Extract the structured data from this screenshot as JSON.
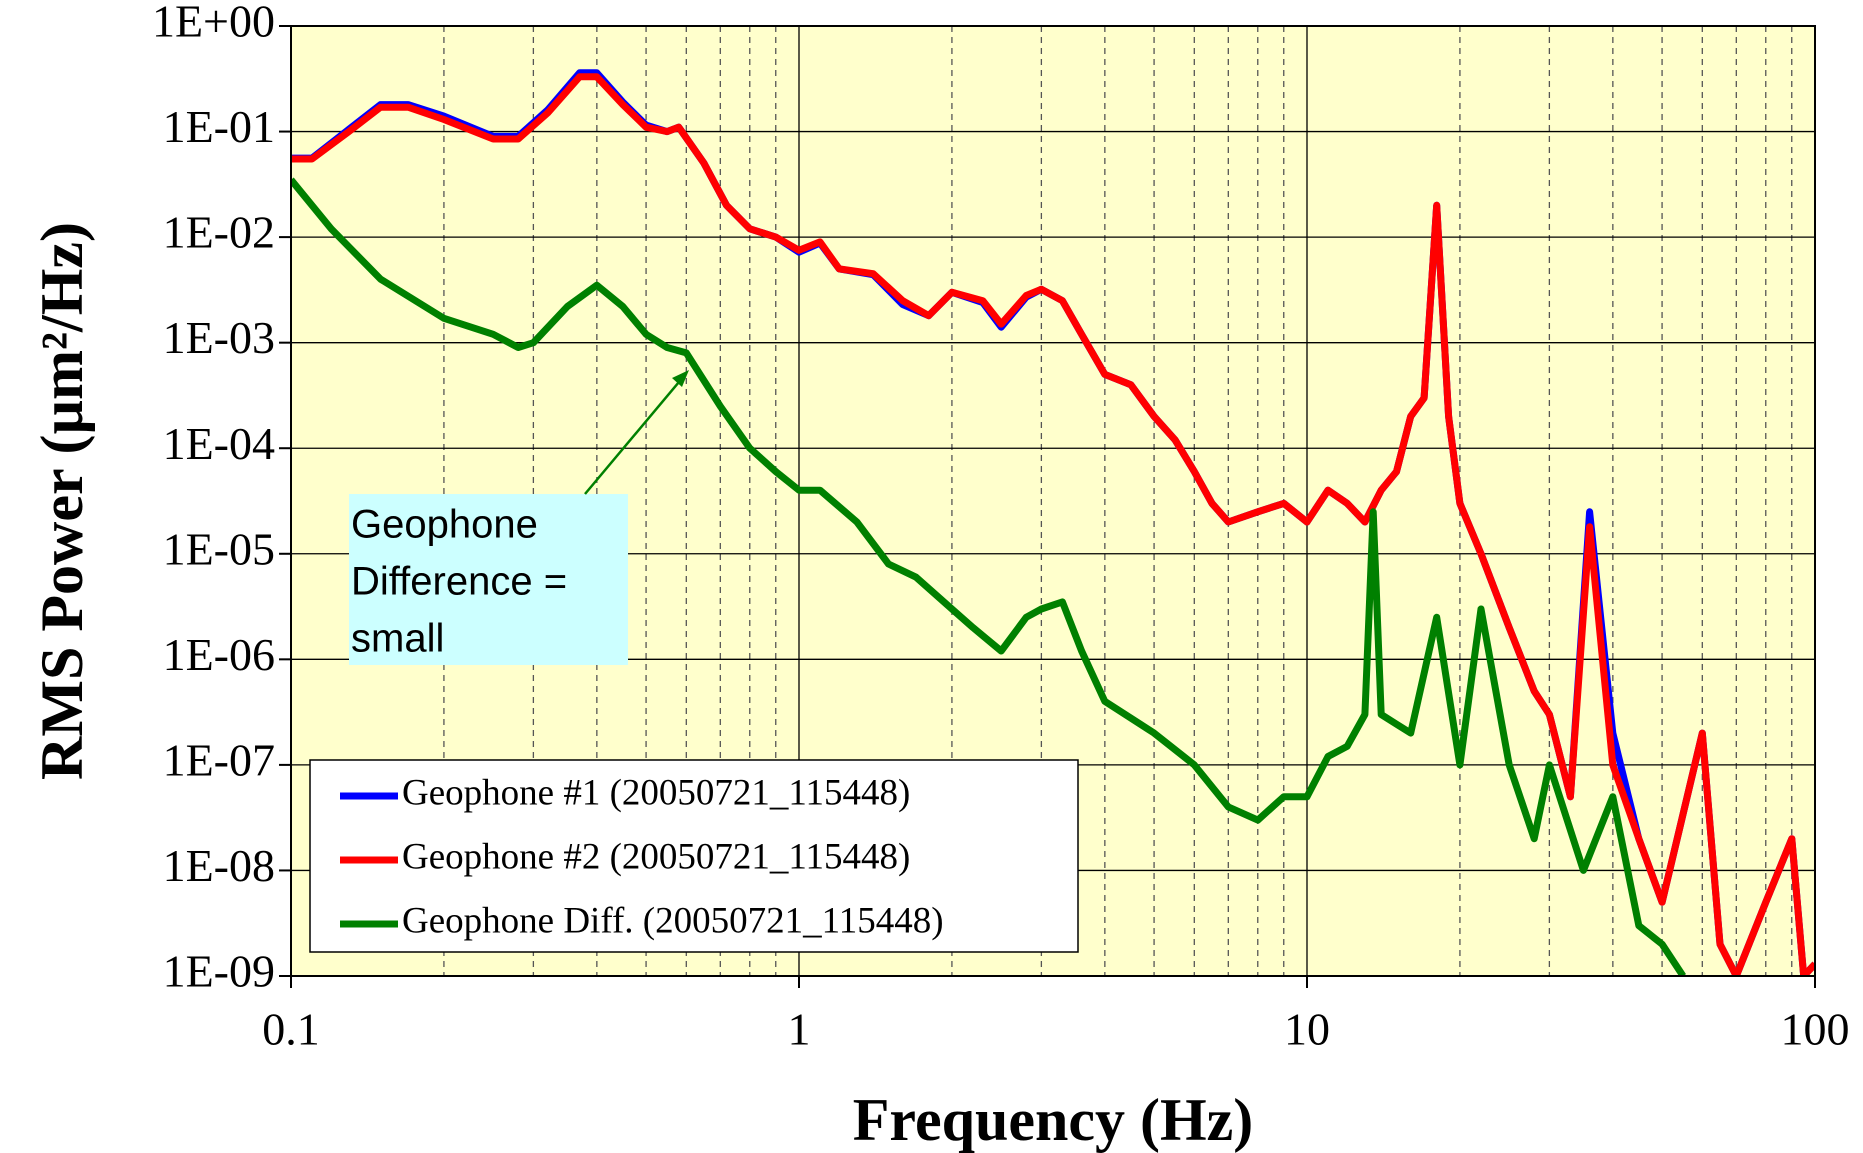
{
  "chart_data": {
    "type": "line",
    "x_label": "Frequency (Hz)",
    "y_label": "RMS Power (µm²/Hz)",
    "log_x": true,
    "log_y": true,
    "grid": true,
    "plot_background": "#ffffcc",
    "legend_position": "lower left",
    "xlim": [
      0.1,
      100
    ],
    "xticks": [
      0.1,
      1,
      10,
      100
    ],
    "xminor_ticks": [
      0.2,
      0.3,
      0.4,
      0.5,
      0.6,
      0.7,
      0.8,
      0.9,
      2,
      3,
      4,
      5,
      6,
      7,
      8,
      9,
      20,
      30,
      40,
      50,
      60,
      70,
      80,
      90
    ],
    "ylim": [
      1e-09,
      1
    ],
    "yticks": [
      {
        "value": 1e-09,
        "label": "1E-09"
      },
      {
        "value": 1e-08,
        "label": "1E-08"
      },
      {
        "value": 1e-07,
        "label": "1E-07"
      },
      {
        "value": 1e-06,
        "label": "1E-06"
      },
      {
        "value": 1e-05,
        "label": "1E-05"
      },
      {
        "value": 0.0001,
        "label": "1E-04"
      },
      {
        "value": 0.001,
        "label": "1E-03"
      },
      {
        "value": 0.01,
        "label": "1E-02"
      },
      {
        "value": 0.1,
        "label": "1E-01"
      },
      {
        "value": 1,
        "label": "1E+00"
      }
    ],
    "annotation": {
      "lines": [
        "Geophone",
        "Difference =",
        "small"
      ],
      "background": "#ccffff"
    },
    "series": [
      {
        "name": "Geophone #1 (20050721_115448)",
        "color": "#0000ff",
        "x": [
          0.1,
          0.11,
          0.13,
          0.15,
          0.17,
          0.2,
          0.25,
          0.28,
          0.32,
          0.37,
          0.4,
          0.45,
          0.5,
          0.55,
          0.58,
          0.65,
          0.72,
          0.8,
          0.9,
          1.0,
          1.1,
          1.2,
          1.4,
          1.6,
          1.8,
          2.0,
          2.3,
          2.5,
          2.8,
          3.0,
          3.3,
          3.6,
          4.0,
          4.5,
          5.0,
          5.5,
          6.0,
          6.5,
          7,
          8,
          9,
          10,
          11,
          12,
          13,
          14,
          15,
          16,
          17,
          18,
          19,
          20,
          22,
          25,
          28,
          30,
          33,
          36,
          40,
          45,
          50,
          60,
          65,
          70,
          80,
          90,
          95,
          100
        ],
        "values": [
          0.056,
          0.056,
          0.105,
          0.18,
          0.18,
          0.14,
          0.09,
          0.09,
          0.16,
          0.36,
          0.36,
          0.19,
          0.115,
          0.1,
          0.11,
          0.05,
          0.02,
          0.012,
          0.01,
          0.0072,
          0.0088,
          0.005,
          0.0044,
          0.0023,
          0.0018,
          0.003,
          0.0024,
          0.0014,
          0.0027,
          0.0032,
          0.0025,
          0.0012,
          0.0005,
          0.0004,
          0.0002,
          0.00012,
          6e-05,
          3e-05,
          2e-05,
          2.5e-05,
          3e-05,
          2e-05,
          4e-05,
          3e-05,
          2e-05,
          4e-05,
          6e-05,
          0.0002,
          0.0003,
          0.02,
          0.0002,
          3e-05,
          1e-05,
          2e-06,
          5e-07,
          3e-07,
          5e-08,
          2.5e-05,
          2e-07,
          2e-08,
          5e-09,
          2e-07,
          2e-09,
          1e-09,
          5e-09,
          2e-08,
          1e-09,
          1.3e-09
        ]
      },
      {
        "name": "Geophone #2 (20050721_115448)",
        "color": "#ff0000",
        "x": [
          0.1,
          0.11,
          0.13,
          0.15,
          0.17,
          0.2,
          0.25,
          0.28,
          0.32,
          0.37,
          0.4,
          0.45,
          0.5,
          0.55,
          0.58,
          0.65,
          0.72,
          0.8,
          0.9,
          1.0,
          1.1,
          1.2,
          1.4,
          1.6,
          1.8,
          2.0,
          2.3,
          2.5,
          2.8,
          3.0,
          3.3,
          3.6,
          4.0,
          4.5,
          5.0,
          5.5,
          6.0,
          6.5,
          7,
          8,
          9,
          10,
          11,
          12,
          13,
          14,
          15,
          16,
          17,
          18,
          19,
          20,
          22,
          25,
          28,
          30,
          33,
          36,
          40,
          45,
          50,
          60,
          65,
          70,
          80,
          90,
          95,
          100
        ],
        "values": [
          0.055,
          0.055,
          0.1,
          0.17,
          0.17,
          0.13,
          0.085,
          0.085,
          0.15,
          0.33,
          0.33,
          0.18,
          0.11,
          0.1,
          0.11,
          0.05,
          0.02,
          0.012,
          0.01,
          0.0075,
          0.009,
          0.005,
          0.0045,
          0.0025,
          0.0018,
          0.003,
          0.0025,
          0.0015,
          0.0028,
          0.0032,
          0.0025,
          0.0012,
          0.0005,
          0.0004,
          0.0002,
          0.00012,
          6e-05,
          3e-05,
          2e-05,
          2.5e-05,
          3e-05,
          2e-05,
          4e-05,
          3e-05,
          2e-05,
          4e-05,
          6e-05,
          0.0002,
          0.0003,
          0.02,
          0.0002,
          3e-05,
          1e-05,
          2e-06,
          5e-07,
          3e-07,
          5e-08,
          1.8e-05,
          1e-07,
          2e-08,
          5e-09,
          2e-07,
          2e-09,
          1e-09,
          5e-09,
          2e-08,
          1e-09,
          1.3e-09
        ]
      },
      {
        "name": "Geophone Diff. (20050721_115448)",
        "color": "#008000",
        "x": [
          0.1,
          0.12,
          0.15,
          0.2,
          0.25,
          0.28,
          0.3,
          0.35,
          0.4,
          0.45,
          0.5,
          0.55,
          0.6,
          0.7,
          0.8,
          0.9,
          1,
          1.1,
          1.3,
          1.5,
          1.7,
          2,
          2.2,
          2.5,
          2.8,
          3,
          3.3,
          3.6,
          4,
          5,
          6,
          7,
          8,
          9,
          10,
          11,
          12,
          13,
          13.5,
          14,
          16,
          18,
          20,
          22,
          25,
          28,
          30,
          35,
          40,
          45,
          50,
          55
        ],
        "values": [
          0.035,
          0.012,
          0.004,
          0.0017,
          0.0012,
          0.0009,
          0.001,
          0.0022,
          0.0035,
          0.0022,
          0.0012,
          0.0009,
          0.0008,
          0.00025,
          0.0001,
          6e-05,
          4e-05,
          4e-05,
          2e-05,
          8e-06,
          6e-06,
          3e-06,
          2e-06,
          1.2e-06,
          2.5e-06,
          3e-06,
          3.5e-06,
          1.2e-06,
          4e-07,
          2e-07,
          1e-07,
          4e-08,
          3e-08,
          5e-08,
          5e-08,
          1.2e-07,
          1.5e-07,
          3e-07,
          2.5e-05,
          3e-07,
          2e-07,
          2.5e-06,
          1e-07,
          3e-06,
          1e-07,
          2e-08,
          1e-07,
          1e-08,
          5e-08,
          3e-09,
          2e-09,
          1e-09
        ]
      }
    ]
  }
}
